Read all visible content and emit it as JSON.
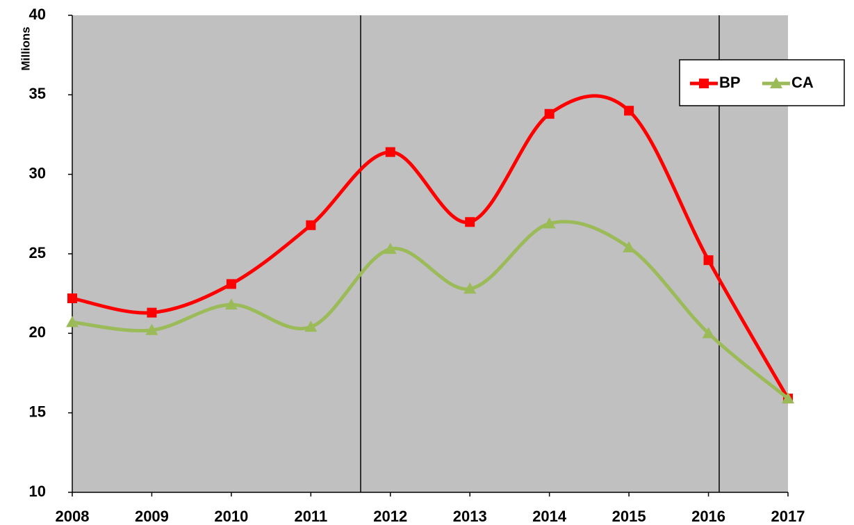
{
  "chart_data": {
    "type": "line",
    "y_label": "Millions",
    "x": [
      2008,
      2009,
      2010,
      2011,
      2012,
      2013,
      2014,
      2015,
      2016,
      2017
    ],
    "xlim": [
      2008,
      2017
    ],
    "xticks": [
      2008,
      2009,
      2010,
      2011,
      2012,
      2013,
      2014,
      2015,
      2016,
      2017
    ],
    "ylim": [
      10,
      40
    ],
    "yticks": [
      10,
      15,
      20,
      25,
      30,
      35,
      40
    ],
    "smooth": true,
    "legend": "top-right",
    "series": [
      {
        "name": "BP",
        "color": "#ff0000",
        "marker": "square",
        "values": [
          22.2,
          21.3,
          23.1,
          26.8,
          31.4,
          27.0,
          33.8,
          34.0,
          24.6,
          15.9
        ]
      },
      {
        "name": "CA",
        "color": "#9bbb59",
        "marker": "triangle",
        "values": [
          20.7,
          20.2,
          21.8,
          20.4,
          25.3,
          22.8,
          26.9,
          25.4,
          20.0,
          15.9
        ]
      }
    ]
  }
}
